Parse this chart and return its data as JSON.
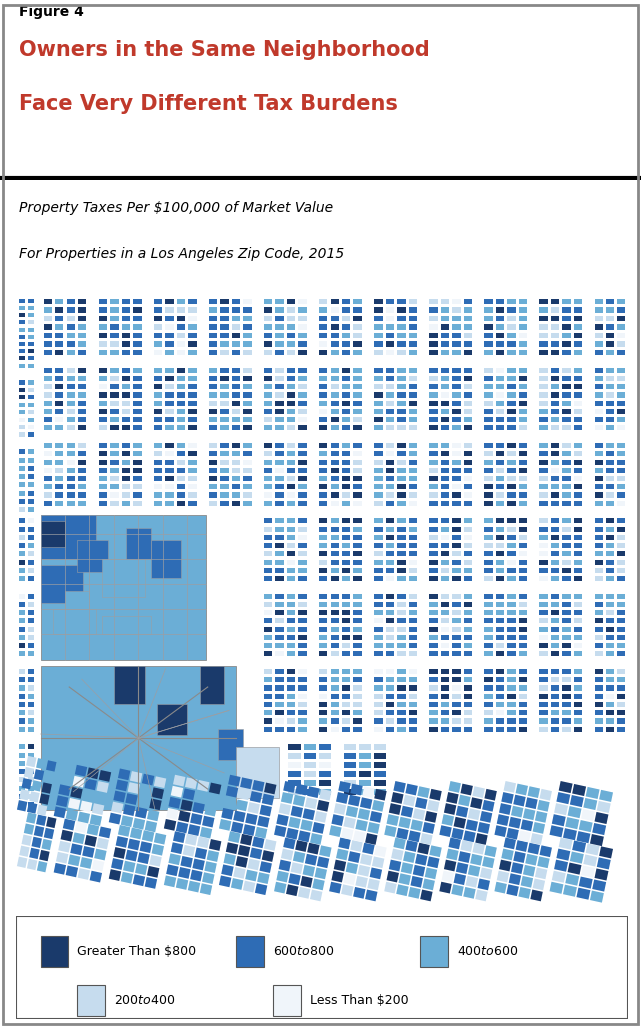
{
  "figure_label": "Figure 4",
  "title_line1": "Owners in the Same Neighborhood",
  "title_line2": "Face Very Different Tax Burdens",
  "title_color": "#C0392B",
  "subtitle_line1": "Property Taxes Per $100,000 of Market Value",
  "subtitle_line2": "For Properties in a Los Angeles Zip Code, 2015",
  "map_bg": "#9B9EA3",
  "colors": {
    "gt800": "#1A3A6B",
    "c600_800": "#2E6CB5",
    "c400_600": "#6BAED6",
    "c200_400": "#C6DCEE",
    "lt200": "#F0F5FA"
  },
  "legend_labels": [
    "Greater Than $800",
    "$600 to $800",
    "$400 to $600",
    "$200 to $400",
    "Less Than $200"
  ],
  "legend_colors": [
    "#1A3A6B",
    "#2E6CB5",
    "#6BAED6",
    "#C6DCEE",
    "#F0F5FA"
  ],
  "fig_width": 6.41,
  "fig_height": 10.29
}
